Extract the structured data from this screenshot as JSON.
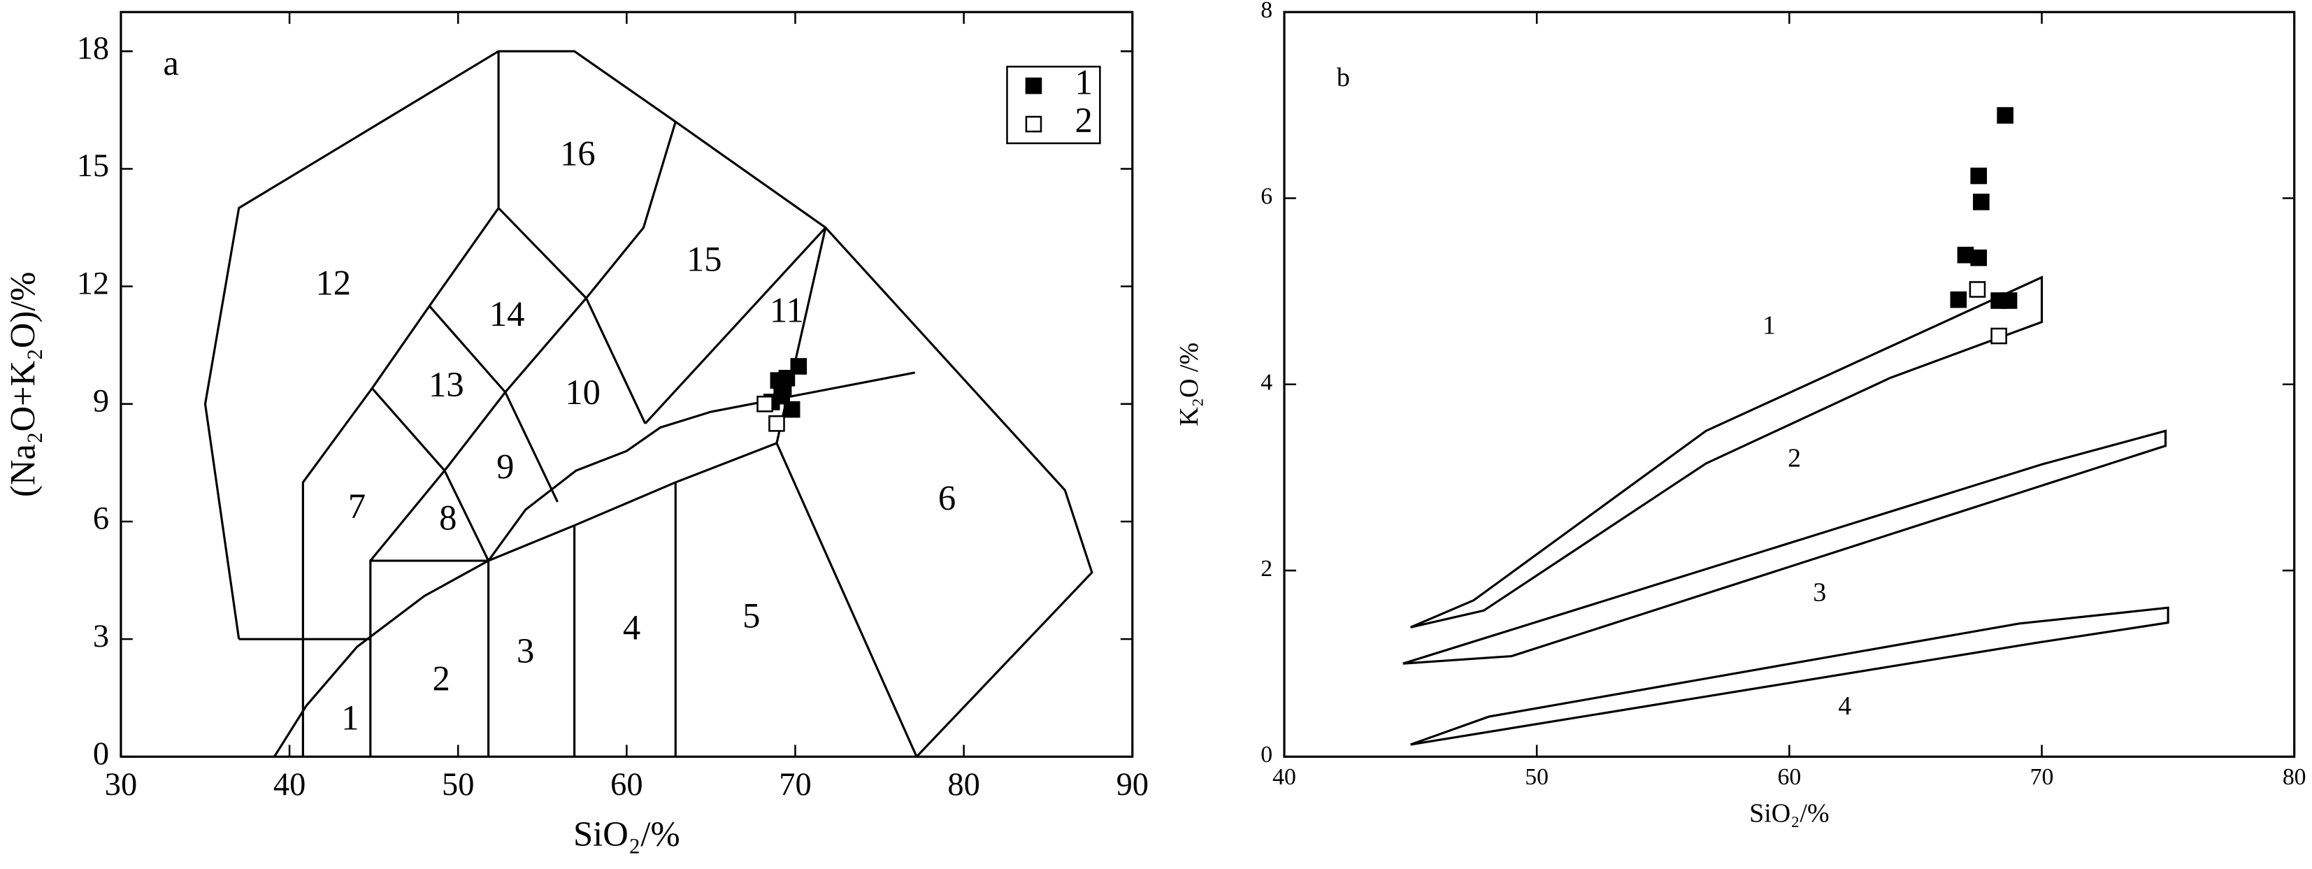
{
  "chart_data": [
    {
      "type": "scatter",
      "annotation": "a",
      "x_label": "SiO₂/%",
      "y_label": "(Na₂O+K₂O)/%",
      "xlim": [
        30,
        90
      ],
      "xticks": [
        30,
        40,
        50,
        60,
        70,
        80,
        90
      ],
      "ylim": [
        0,
        19
      ],
      "yticks": [
        0,
        3,
        6,
        9,
        12,
        15,
        18
      ],
      "legend": "upper right",
      "series": [
        {
          "name": "1",
          "color": "#000000",
          "marker": "filled-square",
          "x": [
            69.5,
            69.3,
            70.2,
            68.6,
            69.8,
            69.2,
            69.0
          ],
          "y": [
            9.66,
            9.4,
            9.96,
            9.05,
            8.86,
            9.2,
            9.6
          ]
        },
        {
          "name": "2",
          "color": "#000000",
          "marker": "open-square",
          "x": [
            68.2,
            68.9
          ],
          "y": [
            9.0,
            8.5
          ]
        }
      ],
      "boundaries": [
        {
          "x": [
            37,
            35,
            37,
            52.4,
            56.9,
            62.9,
            71.8,
            86,
            87.6,
            77.2
          ],
          "y": [
            3,
            9,
            14,
            18,
            18,
            16.2,
            13.5,
            6.8,
            4.7,
            0
          ]
        },
        {
          "x": [
            37,
            44.8
          ],
          "y": [
            3,
            3
          ]
        },
        {
          "x": [
            39.1,
            41,
            44,
            48,
            51.8,
            54,
            57,
            60,
            62,
            65,
            77.1
          ],
          "y": [
            0,
            1.3,
            2.8,
            4.1,
            5,
            6.3,
            7.3,
            7.8,
            8.4,
            8.8,
            9.8
          ]
        },
        {
          "x": [
            40.8,
            40.8,
            44.9,
            48.3,
            52.4,
            57.6,
            61.1
          ],
          "y": [
            0,
            7,
            9.4,
            11.5,
            14,
            11.7,
            8.5
          ]
        },
        {
          "x": [
            52.4,
            52.4
          ],
          "y": [
            14,
            18
          ]
        },
        {
          "x": [
            57.6,
            61,
            62.9
          ],
          "y": [
            11.7,
            13.5,
            16.2
          ]
        },
        {
          "x": [
            44.8,
            44.8,
            51.8,
            51.8
          ],
          "y": [
            0,
            5,
            5,
            0
          ]
        },
        {
          "x": [
            44.8,
            49.2,
            51.8
          ],
          "y": [
            5,
            7.3,
            5
          ]
        },
        {
          "x": [
            44.9,
            49.2,
            52.8,
            57.6
          ],
          "y": [
            9.4,
            7.3,
            9.3,
            11.7
          ]
        },
        {
          "x": [
            48.3,
            52.8,
            55.9
          ],
          "y": [
            11.5,
            9.3,
            6.5
          ]
        },
        {
          "x": [
            51.8,
            56.9,
            62.9,
            68.9,
            77.2
          ],
          "y": [
            5,
            5.9,
            7,
            8,
            0
          ]
        },
        {
          "x": [
            68.9,
            71.8
          ],
          "y": [
            8,
            13.5
          ]
        },
        {
          "x": [
            56.9,
            56.9
          ],
          "y": [
            0,
            5.9
          ]
        },
        {
          "x": [
            62.9,
            62.9
          ],
          "y": [
            0,
            7
          ]
        },
        {
          "x": [
            61.1,
            71.8
          ],
          "y": [
            8.5,
            13.5
          ]
        }
      ],
      "field_labels": [
        {
          "label": "1",
          "x": 43.6,
          "y": 0.9
        },
        {
          "label": "2",
          "x": 49,
          "y": 1.9
        },
        {
          "label": "3",
          "x": 54,
          "y": 2.6
        },
        {
          "label": "4",
          "x": 60.3,
          "y": 3.2
        },
        {
          "label": "5",
          "x": 67.4,
          "y": 3.5
        },
        {
          "label": "6",
          "x": 79,
          "y": 6.5
        },
        {
          "label": "7",
          "x": 44,
          "y": 6.3
        },
        {
          "label": "8",
          "x": 49.4,
          "y": 6
        },
        {
          "label": "9",
          "x": 52.8,
          "y": 7.3
        },
        {
          "label": "10",
          "x": 57.4,
          "y": 9.2
        },
        {
          "label": "11",
          "x": 69.5,
          "y": 11.3
        },
        {
          "label": "12",
          "x": 42.6,
          "y": 12
        },
        {
          "label": "13",
          "x": 49.3,
          "y": 9.4
        },
        {
          "label": "14",
          "x": 52.9,
          "y": 11.2
        },
        {
          "label": "15",
          "x": 64.6,
          "y": 12.6
        },
        {
          "label": "16",
          "x": 57.1,
          "y": 15.3
        }
      ]
    },
    {
      "type": "scatter",
      "annotation": "b",
      "x_label": "SiO₂/%",
      "y_label": "K₂O /%",
      "xlim": [
        40,
        80
      ],
      "xticks": [
        40,
        50,
        60,
        70,
        80
      ],
      "ylim": [
        0,
        8
      ],
      "yticks": [
        0,
        2,
        4,
        6,
        8
      ],
      "series": [
        {
          "color": "#000000",
          "marker": "filled-square",
          "x": [
            68.55,
            67.5,
            67.6,
            66.98,
            67.5,
            66.7,
            68.3,
            68.7
          ],
          "y": [
            6.89,
            6.24,
            5.96,
            5.39,
            5.36,
            4.91,
            4.9,
            4.9
          ]
        },
        {
          "color": "#000000",
          "marker": "open-square",
          "x": [
            67.45,
            68.3
          ],
          "y": [
            5.02,
            4.52
          ]
        }
      ],
      "boundaries": [
        {
          "x": [
            45,
            47.5,
            56.7,
            70,
            70,
            64,
            56.7,
            47.9,
            45
          ],
          "y": [
            1.39,
            1.68,
            3.5,
            5.15,
            4.67,
            4.07,
            3.15,
            1.57,
            1.39
          ]
        },
        {
          "x": [
            44.7,
            70,
            74.9,
            74.9,
            49,
            44.7
          ],
          "y": [
            1.0,
            3.14,
            3.5,
            3.34,
            1.08,
            1.0
          ]
        },
        {
          "x": [
            45,
            48.1,
            69.1,
            75,
            75,
            69.7,
            45
          ],
          "y": [
            0.13,
            0.43,
            1.43,
            1.6,
            1.44,
            1.22,
            0.13
          ]
        }
      ],
      "field_labels": [
        {
          "label": "1",
          "x": 59.2,
          "y": 4.61
        },
        {
          "label": "2",
          "x": 60.2,
          "y": 3.18
        },
        {
          "label": "3",
          "x": 61.2,
          "y": 1.74
        },
        {
          "label": "4",
          "x": 62.2,
          "y": 0.52
        }
      ]
    }
  ]
}
